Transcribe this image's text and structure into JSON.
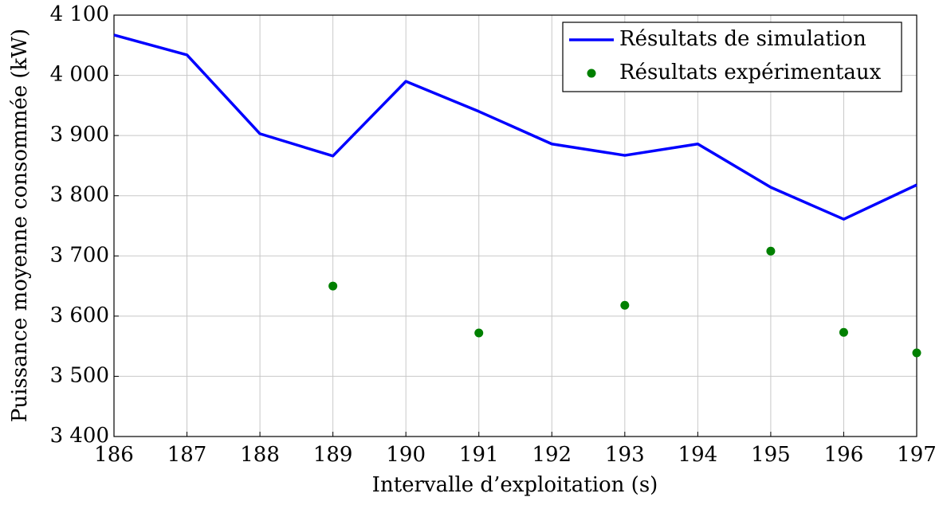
{
  "chart_data": {
    "type": "line",
    "xlabel": "Intervalle d’exploitation (s)",
    "ylabel": "Puissance moyenne consommée (kW)",
    "x": [
      186,
      187,
      188,
      189,
      190,
      191,
      192,
      193,
      194,
      195,
      196,
      197
    ],
    "series": [
      {
        "name": "Résultats de simulation",
        "color": "#0000ff",
        "type": "line",
        "x": [
          186,
          187,
          188,
          189,
          190,
          191,
          192,
          193,
          194,
          195,
          196,
          197
        ],
        "values": [
          4067,
          4034,
          3903,
          3866,
          3990,
          3940,
          3886,
          3867,
          3886,
          3814,
          3761,
          3818
        ]
      },
      {
        "name": "Résultats expérimentaux",
        "color": "#008000",
        "type": "scatter",
        "x": [
          189,
          191,
          193,
          195,
          196,
          197
        ],
        "values": [
          3650,
          3572,
          3618,
          3708,
          3573,
          3539
        ]
      }
    ],
    "xlim": [
      186,
      197
    ],
    "xticks": [
      186,
      187,
      188,
      189,
      190,
      191,
      192,
      193,
      194,
      195,
      196,
      197
    ],
    "ylim": [
      3400,
      4100
    ],
    "yticks": [
      {
        "value": 3400,
        "label": "3 400"
      },
      {
        "value": 3500,
        "label": "3 500"
      },
      {
        "value": 3600,
        "label": "3 600"
      },
      {
        "value": 3700,
        "label": "3 700"
      },
      {
        "value": 3800,
        "label": "3 800"
      },
      {
        "value": 3900,
        "label": "3 900"
      },
      {
        "value": 4000,
        "label": "4 000"
      },
      {
        "value": 4100,
        "label": "4 100"
      }
    ],
    "grid": true,
    "legend": "upper right"
  }
}
